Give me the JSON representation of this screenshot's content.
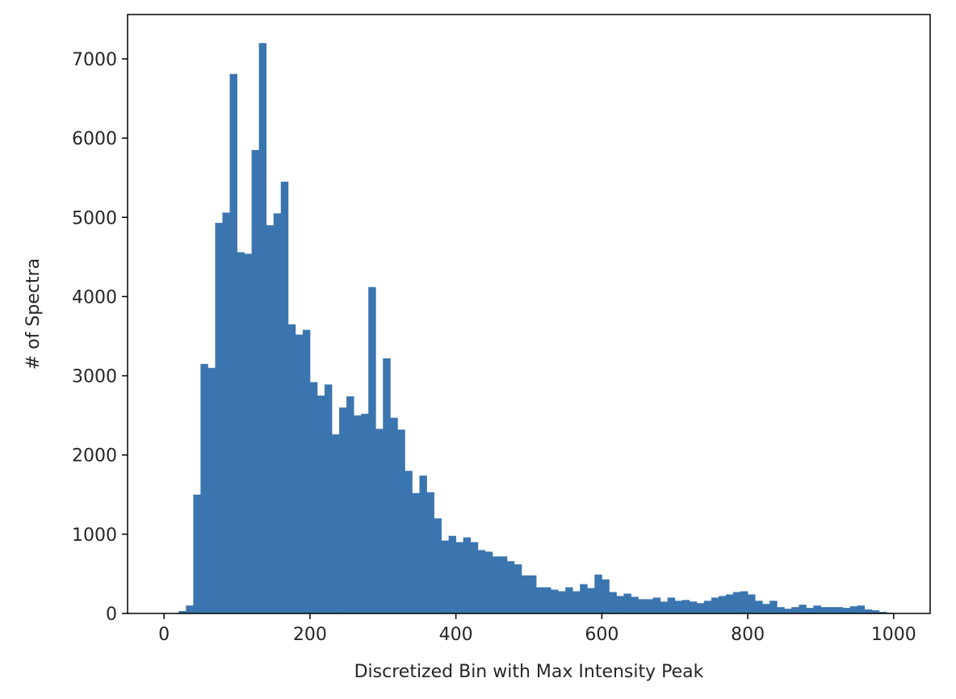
{
  "chart_data": {
    "type": "bar",
    "xlabel": "Discretized Bin with Max Intensity Peak",
    "ylabel": "# of Spectra",
    "xlim": [
      -50,
      1050
    ],
    "ylim": [
      0,
      7560
    ],
    "xticks": [
      0,
      200,
      400,
      600,
      800,
      1000
    ],
    "yticks": [
      0,
      1000,
      2000,
      3000,
      4000,
      5000,
      6000,
      7000
    ],
    "bin_width": 10,
    "bin_start": 0,
    "grid": false,
    "bar_color": "#3b75af",
    "values": [
      0,
      5,
      30,
      100,
      1500,
      3150,
      3100,
      4930,
      5060,
      6810,
      4560,
      4540,
      5850,
      7200,
      4900,
      5050,
      5450,
      3650,
      3520,
      3580,
      2920,
      2750,
      2890,
      2260,
      2600,
      2740,
      2500,
      2520,
      4120,
      2330,
      3220,
      2470,
      2320,
      1800,
      1520,
      1740,
      1530,
      1200,
      920,
      980,
      900,
      960,
      900,
      800,
      780,
      720,
      720,
      660,
      620,
      480,
      480,
      330,
      330,
      300,
      280,
      330,
      280,
      370,
      320,
      490,
      430,
      270,
      220,
      250,
      210,
      180,
      180,
      200,
      150,
      200,
      160,
      170,
      150,
      130,
      160,
      200,
      220,
      240,
      270,
      280,
      240,
      160,
      120,
      160,
      80,
      60,
      80,
      110,
      70,
      100,
      80,
      80,
      80,
      70,
      90,
      100,
      50,
      40,
      20,
      10
    ]
  }
}
